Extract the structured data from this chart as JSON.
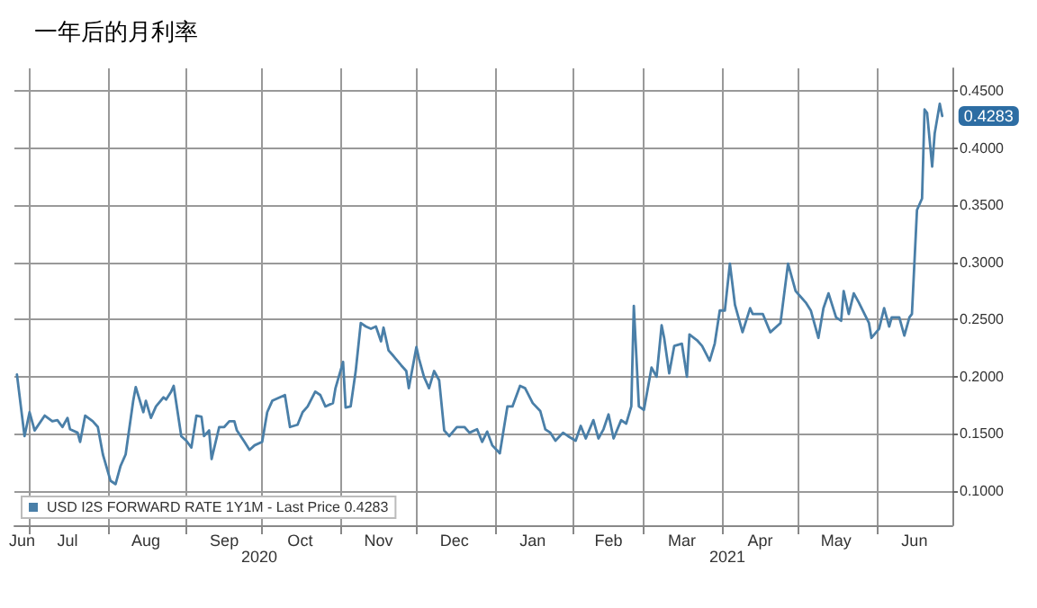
{
  "chart_data": {
    "type": "line",
    "title": "一年后的月利率",
    "x": [
      "2020-06-26",
      "2020-06-29",
      "2020-07-01",
      "2020-07-03",
      "2020-07-07",
      "2020-07-10",
      "2020-07-12",
      "2020-07-14",
      "2020-07-16",
      "2020-07-17",
      "2020-07-20",
      "2020-07-21",
      "2020-07-23",
      "2020-07-26",
      "2020-07-28",
      "2020-07-30",
      "2020-08-02",
      "2020-08-04",
      "2020-08-06",
      "2020-08-08",
      "2020-08-11",
      "2020-08-12",
      "2020-08-15",
      "2020-08-16",
      "2020-08-18",
      "2020-08-20",
      "2020-08-23",
      "2020-08-24",
      "2020-08-26",
      "2020-08-27",
      "2020-08-30",
      "2020-09-01",
      "2020-09-03",
      "2020-09-05",
      "2020-09-07",
      "2020-09-08",
      "2020-09-10",
      "2020-09-11",
      "2020-09-14",
      "2020-09-16",
      "2020-09-18",
      "2020-09-20",
      "2020-09-21",
      "2020-09-24",
      "2020-09-26",
      "2020-09-28",
      "2020-10-01",
      "2020-10-03",
      "2020-10-05",
      "2020-10-08",
      "2020-10-10",
      "2020-10-12",
      "2020-10-15",
      "2020-10-17",
      "2020-10-19",
      "2020-10-22",
      "2020-10-24",
      "2020-10-26",
      "2020-10-29",
      "2020-10-30",
      "2020-11-02",
      "2020-11-03",
      "2020-11-05",
      "2020-11-07",
      "2020-11-09",
      "2020-11-11",
      "2020-11-13",
      "2020-11-15",
      "2020-11-17",
      "2020-11-18",
      "2020-11-20",
      "2020-11-22",
      "2020-11-25",
      "2020-11-27",
      "2020-11-28",
      "2020-12-01",
      "2020-12-02",
      "2020-12-04",
      "2020-12-06",
      "2020-12-08",
      "2020-12-10",
      "2020-12-12",
      "2020-12-14",
      "2020-12-17",
      "2020-12-20",
      "2020-12-22",
      "2020-12-25",
      "2020-12-27",
      "2020-12-29",
      "2020-12-31",
      "2021-01-03",
      "2021-01-06",
      "2021-01-08",
      "2021-01-11",
      "2021-01-13",
      "2021-01-16",
      "2021-01-19",
      "2021-01-21",
      "2021-01-23",
      "2021-01-25",
      "2021-01-28",
      "2021-01-30",
      "2021-02-02",
      "2021-02-04",
      "2021-02-06",
      "2021-02-09",
      "2021-02-11",
      "2021-02-13",
      "2021-02-15",
      "2021-02-17",
      "2021-02-20",
      "2021-02-22",
      "2021-02-24",
      "2021-02-25",
      "2021-02-27",
      "2021-03-01",
      "2021-03-04",
      "2021-03-06",
      "2021-03-08",
      "2021-03-09",
      "2021-03-11",
      "2021-03-13",
      "2021-03-16",
      "2021-03-18",
      "2021-03-19",
      "2021-03-22",
      "2021-03-24",
      "2021-03-27",
      "2021-03-29",
      "2021-03-31",
      "2021-04-02",
      "2021-04-04",
      "2021-04-06",
      "2021-04-09",
      "2021-04-12",
      "2021-04-13",
      "2021-04-17",
      "2021-04-20",
      "2021-04-24",
      "2021-04-27",
      "2021-04-30",
      "2021-05-02",
      "2021-05-04",
      "2021-05-06",
      "2021-05-09",
      "2021-05-11",
      "2021-05-13",
      "2021-05-16",
      "2021-05-18",
      "2021-05-19",
      "2021-05-21",
      "2021-05-23",
      "2021-05-25",
      "2021-05-29",
      "2021-05-30",
      "2021-06-02",
      "2021-06-04",
      "2021-06-06",
      "2021-06-07",
      "2021-06-10",
      "2021-06-12",
      "2021-06-14",
      "2021-06-15",
      "2021-06-17",
      "2021-06-19",
      "2021-06-20",
      "2021-06-21",
      "2021-06-23",
      "2021-06-24",
      "2021-06-26",
      "2021-06-27"
    ],
    "series": [
      {
        "name": "USD I2S FORWARD RATE 1Y1M - Last Price 0.4283",
        "color": "#4a7fa8",
        "values": [
          0.202,
          0.148,
          0.169,
          0.153,
          0.166,
          0.161,
          0.162,
          0.156,
          0.164,
          0.154,
          0.151,
          0.143,
          0.166,
          0.161,
          0.156,
          0.132,
          0.109,
          0.106,
          0.122,
          0.132,
          0.179,
          0.191,
          0.169,
          0.179,
          0.164,
          0.174,
          0.182,
          0.18,
          0.187,
          0.192,
          0.148,
          0.144,
          0.138,
          0.166,
          0.165,
          0.148,
          0.153,
          0.128,
          0.156,
          0.156,
          0.161,
          0.161,
          0.153,
          0.143,
          0.136,
          0.14,
          0.143,
          0.169,
          0.179,
          0.182,
          0.184,
          0.156,
          0.158,
          0.169,
          0.174,
          0.187,
          0.184,
          0.174,
          0.177,
          0.19,
          0.213,
          0.173,
          0.174,
          0.205,
          0.247,
          0.244,
          0.242,
          0.244,
          0.231,
          0.243,
          0.223,
          0.218,
          0.21,
          0.205,
          0.19,
          0.226,
          0.216,
          0.2,
          0.19,
          0.205,
          0.197,
          0.153,
          0.148,
          0.156,
          0.156,
          0.151,
          0.154,
          0.143,
          0.152,
          0.14,
          0.133,
          0.174,
          0.174,
          0.192,
          0.19,
          0.177,
          0.17,
          0.154,
          0.151,
          0.144,
          0.151,
          0.148,
          0.144,
          0.157,
          0.146,
          0.162,
          0.146,
          0.154,
          0.167,
          0.146,
          0.162,
          0.159,
          0.174,
          0.262,
          0.174,
          0.171,
          0.208,
          0.2,
          0.245,
          0.234,
          0.203,
          0.227,
          0.229,
          0.2,
          0.237,
          0.232,
          0.227,
          0.214,
          0.229,
          0.258,
          0.258,
          0.299,
          0.263,
          0.239,
          0.26,
          0.255,
          0.255,
          0.239,
          0.247,
          0.299,
          0.275,
          0.27,
          0.265,
          0.258,
          0.234,
          0.26,
          0.273,
          0.252,
          0.249,
          0.275,
          0.255,
          0.273,
          0.265,
          0.247,
          0.234,
          0.242,
          0.26,
          0.244,
          0.252,
          0.252,
          0.236,
          0.252,
          0.255,
          0.346,
          0.356,
          0.434,
          0.431,
          0.384,
          0.413,
          0.439,
          0.4283
        ],
        "value_labels": [
          null,
          null,
          null,
          null,
          null,
          null,
          null,
          null,
          null,
          null,
          null,
          null,
          null,
          null,
          null,
          null,
          null,
          null,
          null,
          null,
          null,
          null,
          null,
          null,
          null,
          null,
          null,
          null,
          null,
          null,
          null,
          null,
          null,
          null,
          null,
          null,
          null,
          null,
          null,
          null,
          null,
          null,
          null,
          null,
          null,
          null,
          null,
          null,
          null,
          null,
          null,
          null,
          null,
          null,
          null,
          null,
          null,
          null,
          null,
          null,
          null,
          null,
          null,
          null,
          null,
          null,
          null,
          null,
          null,
          null,
          null,
          null,
          null,
          null,
          null,
          null,
          null,
          null,
          null,
          null,
          null,
          null,
          null,
          null,
          null,
          null,
          null,
          null,
          null,
          null,
          null,
          null,
          null,
          null,
          null,
          null,
          null,
          null,
          null,
          null,
          null,
          null,
          null,
          null,
          null,
          null,
          null,
          null,
          null,
          null,
          null,
          null,
          null,
          null,
          null,
          null,
          null,
          null,
          null,
          null,
          null,
          null,
          null,
          null,
          null,
          null,
          null,
          null,
          null,
          null,
          null,
          null,
          null,
          null,
          null,
          null,
          null,
          null,
          null,
          null,
          null,
          null,
          null,
          null,
          null,
          null,
          null,
          null,
          null,
          null,
          null,
          null,
          null,
          null,
          null,
          null,
          null,
          null,
          null,
          null,
          null,
          null,
          null,
          null,
          null,
          null,
          null,
          null,
          null,
          null,
          "0.4283"
        ]
      }
    ],
    "xlim": [
      "2020-06-25",
      "2021-07-01"
    ],
    "xticks": [
      {
        "value": "2020-07-01",
        "label": null
      },
      {
        "value": "2020-08-01",
        "label": null
      },
      {
        "value": "2020-09-01",
        "label": null
      },
      {
        "value": "2020-10-01",
        "label": null
      },
      {
        "value": "2020-11-01",
        "label": null
      },
      {
        "value": "2020-12-01",
        "label": null
      },
      {
        "value": "2021-01-01",
        "label": null
      },
      {
        "value": "2021-02-01",
        "label": null
      },
      {
        "value": "2021-03-01",
        "label": null
      },
      {
        "value": "2021-04-01",
        "label": null
      },
      {
        "value": "2021-05-01",
        "label": null
      },
      {
        "value": "2021-06-01",
        "label": null
      },
      {
        "value": "2020-06-28",
        "label": "Jun"
      },
      {
        "value": "2020-07-16",
        "label": "Jul"
      },
      {
        "value": "2020-08-16",
        "label": "Aug"
      },
      {
        "value": "2020-09-16",
        "label": "Sep"
      },
      {
        "value": "2020-10-16",
        "label": "Oct"
      },
      {
        "value": "2020-11-16",
        "label": "Nov"
      },
      {
        "value": "2020-12-16",
        "label": "Dec"
      },
      {
        "value": "2021-01-16",
        "label": "Jan"
      },
      {
        "value": "2021-02-15",
        "label": "Feb"
      },
      {
        "value": "2021-03-16",
        "label": "Mar"
      },
      {
        "value": "2021-04-16",
        "label": "Apr"
      },
      {
        "value": "2021-05-16",
        "label": "May"
      },
      {
        "value": "2021-06-16",
        "label": "Jun"
      }
    ],
    "ylim": [
      0.07,
      0.47
    ],
    "yticks": [
      {
        "value": 0.1,
        "label": "0.1000"
      },
      {
        "value": 0.15,
        "label": "0.1500"
      },
      {
        "value": 0.2,
        "label": "0.2000"
      },
      {
        "value": 0.25,
        "label": "0.2500"
      },
      {
        "value": 0.3,
        "label": "0.3000"
      },
      {
        "value": 0.35,
        "label": "0.3500"
      },
      {
        "value": 0.4,
        "label": "0.4000"
      },
      {
        "value": 0.45,
        "label": "0.4500"
      }
    ],
    "annotations": [
      "2020",
      "2021"
    ],
    "grid": true,
    "legend": "bottom left",
    "marker": "none",
    "line_style": "solid"
  }
}
